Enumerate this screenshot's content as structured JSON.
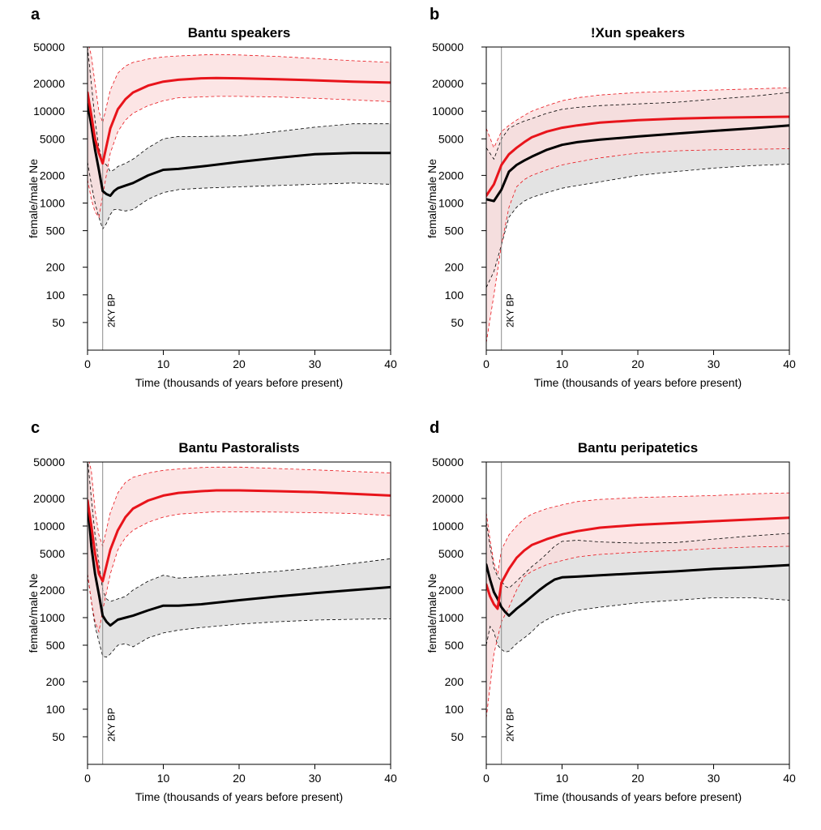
{
  "chart_data": [
    {
      "type": "line",
      "panel_letter": "a",
      "title": "Bantu speakers",
      "xlabel": "Time (thousands of years before present)",
      "ylabel": "female/male Ne",
      "xlim": [
        0,
        40
      ],
      "ylim": [
        25,
        50000
      ],
      "y_scale": "log",
      "x_ticks": [
        0,
        10,
        20,
        30,
        40
      ],
      "y_ticks": [
        50,
        100,
        200,
        500,
        1000,
        2000,
        5000,
        10000,
        20000,
        50000
      ],
      "vline": {
        "x": 2,
        "label": "2KY BP"
      },
      "series": [
        {
          "color": "#e8141b",
          "band_color": "#fbdcdc",
          "x": [
            0,
            0.5,
            1,
            1.5,
            2,
            3,
            4,
            5,
            6,
            8,
            10,
            12,
            15,
            17,
            20,
            25,
            30,
            35,
            40
          ],
          "mean": [
            16000,
            9000,
            5000,
            3500,
            2700,
            6500,
            10500,
            13500,
            16000,
            19000,
            21000,
            22000,
            22800,
            23000,
            22800,
            22300,
            21700,
            21000,
            20500
          ],
          "upper": [
            60000,
            40000,
            20000,
            10000,
            7500,
            17000,
            26000,
            31000,
            34000,
            37000,
            39000,
            40000,
            41000,
            41500,
            41000,
            39500,
            37500,
            35500,
            34000
          ],
          "lower": [
            1800,
            1100,
            800,
            700,
            1200,
            3500,
            6000,
            8000,
            9500,
            11500,
            13000,
            14000,
            14300,
            14500,
            14500,
            14300,
            13800,
            13300,
            12700
          ]
        },
        {
          "color": "#000000",
          "band_color": "#e3e3e3",
          "x": [
            0,
            0.5,
            1,
            1.5,
            2,
            2.5,
            3,
            3.5,
            4,
            5,
            6,
            8,
            10,
            12,
            15,
            20,
            25,
            30,
            35,
            40
          ],
          "mean": [
            12000,
            7000,
            3800,
            2300,
            1350,
            1250,
            1200,
            1350,
            1450,
            1550,
            1650,
            2000,
            2300,
            2350,
            2500,
            2800,
            3100,
            3400,
            3500,
            3500
          ],
          "upper": [
            50000,
            20000,
            8000,
            4000,
            2800,
            2600,
            2200,
            2300,
            2500,
            2700,
            3000,
            4000,
            5000,
            5300,
            5300,
            5400,
            6000,
            6700,
            7300,
            7300
          ],
          "lower": [
            2800,
            1600,
            1000,
            700,
            520,
            600,
            750,
            850,
            850,
            820,
            850,
            1100,
            1300,
            1400,
            1450,
            1500,
            1550,
            1600,
            1650,
            1600
          ]
        }
      ]
    },
    {
      "type": "line",
      "panel_letter": "b",
      "title": "!Xun speakers",
      "xlabel": "Time (thousands of years before present)",
      "ylabel": "female/male Ne",
      "xlim": [
        0,
        40
      ],
      "ylim": [
        25,
        50000
      ],
      "y_scale": "log",
      "x_ticks": [
        0,
        10,
        20,
        30,
        40
      ],
      "y_ticks": [
        50,
        100,
        200,
        500,
        1000,
        2000,
        5000,
        10000,
        20000,
        50000
      ],
      "vline": {
        "x": 2,
        "label": "2KY BP"
      },
      "series": [
        {
          "color": "#e8141b",
          "band_color": "#fbdcdc",
          "x": [
            0,
            1,
            2,
            3,
            4,
            5,
            6,
            8,
            10,
            12,
            15,
            20,
            25,
            30,
            35,
            40
          ],
          "mean": [
            1200,
            1600,
            2600,
            3400,
            4000,
            4600,
            5200,
            6000,
            6600,
            7000,
            7500,
            8000,
            8300,
            8500,
            8600,
            8700
          ],
          "upper": [
            6500,
            4000,
            6000,
            7000,
            8000,
            9000,
            10000,
            11500,
            13000,
            14000,
            15000,
            16000,
            16500,
            17000,
            17500,
            18000
          ],
          "lower": [
            30,
            100,
            350,
            900,
            1500,
            1800,
            2000,
            2300,
            2600,
            2800,
            3100,
            3500,
            3700,
            3800,
            3850,
            3900
          ]
        },
        {
          "color": "#000000",
          "band_color": "#e3e3e3",
          "x": [
            0,
            1,
            2,
            3,
            4,
            5,
            6,
            8,
            10,
            12,
            15,
            20,
            25,
            30,
            35,
            40
          ],
          "mean": [
            1100,
            1050,
            1400,
            2200,
            2600,
            2900,
            3200,
            3800,
            4300,
            4600,
            4900,
            5300,
            5700,
            6100,
            6500,
            7000
          ],
          "upper": [
            4000,
            3000,
            5000,
            6500,
            7200,
            7800,
            8300,
            9500,
            10500,
            11000,
            11500,
            12000,
            12500,
            13500,
            14500,
            16000
          ],
          "lower": [
            120,
            180,
            350,
            700,
            900,
            1050,
            1150,
            1300,
            1450,
            1550,
            1700,
            2000,
            2200,
            2400,
            2550,
            2650
          ]
        }
      ]
    },
    {
      "type": "line",
      "panel_letter": "c",
      "title": "Bantu Pastoralists",
      "xlabel": "Time (thousands of years before present)",
      "ylabel": "female/male Ne",
      "xlim": [
        0,
        40
      ],
      "ylim": [
        25,
        50000
      ],
      "y_scale": "log",
      "x_ticks": [
        0,
        10,
        20,
        30,
        40
      ],
      "y_ticks": [
        50,
        100,
        200,
        500,
        1000,
        2000,
        5000,
        10000,
        20000,
        50000
      ],
      "vline": {
        "x": 2,
        "label": "2KY BP"
      },
      "series": [
        {
          "color": "#e8141b",
          "band_color": "#fbdcdc",
          "x": [
            0,
            0.5,
            1,
            1.5,
            2,
            3,
            4,
            5,
            6,
            8,
            10,
            12,
            15,
            17,
            20,
            25,
            30,
            35,
            40
          ],
          "mean": [
            19000,
            10000,
            5000,
            3000,
            2500,
            5500,
            9000,
            12500,
            15500,
            19000,
            21500,
            23000,
            24000,
            24500,
            24500,
            24000,
            23500,
            22500,
            21500
          ],
          "upper": [
            60000,
            40000,
            15000,
            8000,
            6000,
            14000,
            23000,
            30000,
            34000,
            38000,
            40500,
            42000,
            43500,
            44000,
            44000,
            42500,
            41000,
            39500,
            38000
          ],
          "lower": [
            3000,
            1500,
            900,
            700,
            1200,
            3000,
            5500,
            7500,
            9000,
            11000,
            12500,
            13500,
            14000,
            14300,
            14300,
            14200,
            14000,
            13700,
            13000
          ]
        },
        {
          "color": "#000000",
          "band_color": "#e3e3e3",
          "x": [
            0,
            0.5,
            1,
            1.5,
            2,
            2.5,
            3,
            4,
            5,
            6,
            8,
            10,
            12,
            15,
            20,
            25,
            30,
            35,
            40
          ],
          "mean": [
            19000,
            6000,
            3000,
            1800,
            1050,
            900,
            820,
            950,
            1000,
            1050,
            1200,
            1350,
            1350,
            1400,
            1550,
            1700,
            1850,
            2000,
            2150
          ],
          "upper": [
            55000,
            20000,
            8000,
            4000,
            2000,
            1600,
            1500,
            1600,
            1700,
            2000,
            2500,
            2900,
            2700,
            2800,
            3000,
            3200,
            3500,
            3900,
            4400
          ],
          "lower": [
            3000,
            1500,
            800,
            550,
            380,
            370,
            400,
            500,
            520,
            480,
            600,
            680,
            730,
            780,
            850,
            900,
            940,
            960,
            970
          ]
        }
      ]
    },
    {
      "type": "line",
      "panel_letter": "d",
      "title": "Bantu peripatetics",
      "xlabel": "Time (thousands of years before present)",
      "ylabel": "female/male Ne",
      "xlim": [
        0,
        40
      ],
      "ylim": [
        25,
        50000
      ],
      "y_scale": "log",
      "x_ticks": [
        0,
        10,
        20,
        30,
        40
      ],
      "y_ticks": [
        50,
        100,
        200,
        500,
        1000,
        2000,
        5000,
        10000,
        20000,
        50000
      ],
      "vline": {
        "x": 2,
        "label": "2KY BP"
      },
      "series": [
        {
          "color": "#e8141b",
          "band_color": "#fbdcdc",
          "x": [
            0,
            0.5,
            1,
            1.5,
            2,
            3,
            4,
            5,
            6,
            8,
            10,
            12,
            15,
            20,
            25,
            30,
            35,
            40
          ],
          "mean": [
            2300,
            1700,
            1400,
            1250,
            2400,
            3400,
            4500,
            5400,
            6200,
            7200,
            8100,
            8800,
            9600,
            10300,
            10800,
            11300,
            11800,
            12300
          ],
          "upper": [
            14000,
            7000,
            4000,
            3000,
            5500,
            8000,
            10000,
            12000,
            13500,
            15500,
            17000,
            18500,
            19500,
            20500,
            21000,
            21500,
            22500,
            23000
          ],
          "lower": [
            80,
            180,
            400,
            600,
            900,
            1300,
            2000,
            2800,
            3200,
            3800,
            4200,
            4600,
            4900,
            5200,
            5400,
            5700,
            5900,
            6000
          ]
        },
        {
          "color": "#000000",
          "band_color": "#e3e3e3",
          "x": [
            0,
            0.5,
            1,
            1.5,
            2,
            2.5,
            3,
            4,
            5,
            6,
            7,
            8,
            9,
            10,
            12,
            15,
            20,
            25,
            30,
            35,
            40
          ],
          "mean": [
            3800,
            2600,
            1900,
            1600,
            1300,
            1150,
            1050,
            1250,
            1450,
            1700,
            2000,
            2300,
            2600,
            2750,
            2800,
            2900,
            3050,
            3200,
            3400,
            3550,
            3750
          ],
          "upper": [
            11000,
            6000,
            3500,
            2800,
            2500,
            2200,
            2100,
            2500,
            3000,
            3600,
            4200,
            5000,
            6000,
            6800,
            7000,
            6700,
            6500,
            6600,
            7200,
            7800,
            8300
          ],
          "lower": [
            500,
            800,
            700,
            500,
            450,
            420,
            430,
            520,
            600,
            700,
            850,
            950,
            1050,
            1100,
            1200,
            1300,
            1450,
            1550,
            1650,
            1650,
            1550
          ]
        }
      ]
    }
  ]
}
